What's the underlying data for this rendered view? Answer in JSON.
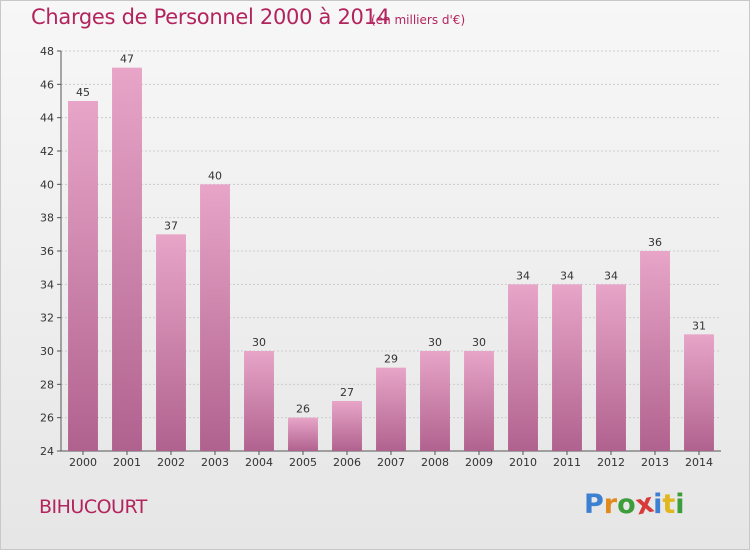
{
  "header": {
    "title": "Charges de Personnel 2000 à 2014",
    "subtitle": "(en milliers d'€)"
  },
  "location": "BIHUCOURT",
  "logo": {
    "text": "Proxiti",
    "letter_colors": [
      "#3d7fd0",
      "#e08a1e",
      "#3d9d3a",
      "#d83a3a",
      "#3d7fd0",
      "#e0b81e",
      "#3d9d3a"
    ]
  },
  "colors": {
    "bar_top": "#e8a5c8",
    "bar_bottom": "#b0628e",
    "title": "#b3245e",
    "grid": "#cccccc"
  },
  "chart_data": {
    "type": "bar",
    "title": "Charges de Personnel 2000 à 2014",
    "subtitle": "(en milliers d'€)",
    "xlabel": "",
    "ylabel": "",
    "categories": [
      "2000",
      "2001",
      "2002",
      "2003",
      "2004",
      "2005",
      "2006",
      "2007",
      "2008",
      "2009",
      "2010",
      "2011",
      "2012",
      "2013",
      "2014"
    ],
    "values": [
      45,
      47,
      37,
      40,
      30,
      26,
      27,
      29,
      30,
      30,
      34,
      34,
      34,
      36,
      31
    ],
    "ylim": [
      24,
      48
    ],
    "yticks": [
      24,
      26,
      28,
      30,
      32,
      34,
      36,
      38,
      40,
      42,
      44,
      46,
      48
    ],
    "grid": true,
    "data_labels": true
  }
}
